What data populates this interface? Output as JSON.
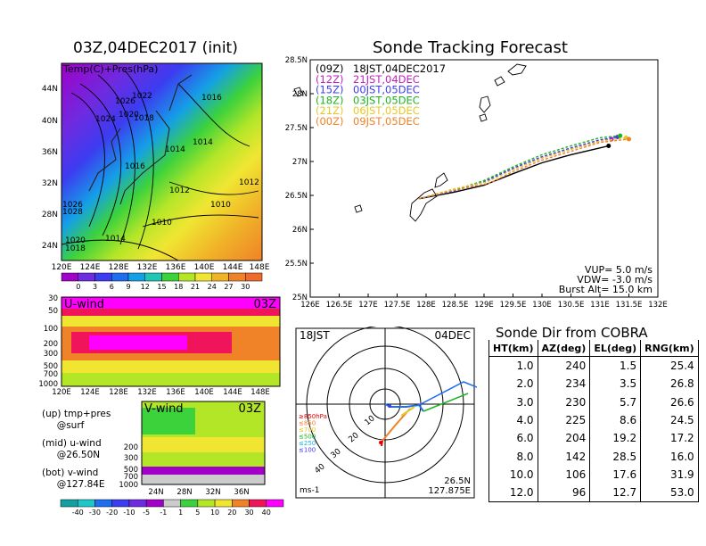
{
  "left_panel": {
    "title": "03Z,04DEC2017 (init)",
    "label": "Temp(C)+Pres(hPa)",
    "lat_labels": [
      "44N",
      "40N",
      "36N",
      "32N",
      "28N",
      "24N"
    ],
    "lon_labels": [
      "120E",
      "124E",
      "128E",
      "132E",
      "136E",
      "140E",
      "144E",
      "148E"
    ],
    "pressure_labels": [
      "1026",
      "1022",
      "1016",
      "1024",
      "1020",
      "1018",
      "1014",
      "1014",
      "1016",
      "1012",
      "1012",
      "1010",
      "1010",
      "1026",
      "1028",
      "1014",
      "1020",
      "1018"
    ],
    "colorbar_ticks": [
      "0",
      "3",
      "6",
      "9",
      "12",
      "15",
      "18",
      "21",
      "24",
      "27",
      "30"
    ],
    "colorbar_colors": [
      "#a000c8",
      "#6e2be0",
      "#3c3cf0",
      "#1e6ef0",
      "#14a0e6",
      "#1ec8b4",
      "#3cd23c",
      "#b4e628",
      "#f0e632",
      "#f0b428",
      "#f08228",
      "#ee6a2d"
    ]
  },
  "u_wind_panel": {
    "label": "U-wind",
    "time": "03Z",
    "y_labels": [
      "30",
      "50",
      "100",
      "200",
      "300",
      "500",
      "700",
      "1000"
    ],
    "x_labels": [
      "120E",
      "124E",
      "128E",
      "132E",
      "136E",
      "140E",
      "144E",
      "148E"
    ]
  },
  "v_wind_panel": {
    "label": "V-wind",
    "time": "03Z",
    "y_labels": [
      "200",
      "300",
      "500",
      "700",
      "1000"
    ],
    "x_labels": [
      "24N",
      "28N",
      "32N",
      "36N"
    ]
  },
  "notes": {
    "line1": "(up) tmp+pres",
    "line2": "     @surf",
    "line3": "(mid) u-wind",
    "line4": "     @26.50N",
    "line5": "(bot) v-wind",
    "line6": "     @127.84E"
  },
  "wind_colorbar": {
    "ticks": [
      "-40",
      "-30",
      "-20",
      "-10",
      "-5",
      "-1",
      "1",
      "5",
      "10",
      "20",
      "30",
      "40"
    ],
    "colors": [
      "#14a0a0",
      "#1ec8c8",
      "#1e6ef0",
      "#3c3cf0",
      "#6e2be0",
      "#a000c8",
      "#cccccc",
      "#3cd23c",
      "#b4e628",
      "#f0e632",
      "#f08228",
      "#f0145a",
      "#ff00ff"
    ]
  },
  "tracking": {
    "title": "Sonde Tracking Forecast",
    "y_labels": [
      "28.5N",
      "28N",
      "27.5N",
      "27N",
      "26.5N",
      "26N",
      "25.5N",
      "25N"
    ],
    "x_labels": [
      "126E",
      "126.5E",
      "127E",
      "127.5E",
      "128E",
      "128.5E",
      "129E",
      "129.5E",
      "130E",
      "130.5E",
      "131E",
      "131.5E",
      "132E"
    ],
    "legend": [
      {
        "run": "(09Z)",
        "time": "18JST,04DEC2017",
        "color": "#000000"
      },
      {
        "run": "(12Z)",
        "time": "21JST,04DEC",
        "color": "#c020c0"
      },
      {
        "run": "(15Z)",
        "time": "00JST,05DEC",
        "color": "#3c3cf0"
      },
      {
        "run": "(18Z)",
        "time": "03JST,05DEC",
        "color": "#1eb41e"
      },
      {
        "run": "(21Z)",
        "time": "06JST,05DEC",
        "color": "#e6c828"
      },
      {
        "run": "(00Z)",
        "time": "09JST,05DEC",
        "color": "#f08228"
      }
    ],
    "params": {
      "vup": "VUP= 5.0 m/s",
      "vdw": "VDW= -3.0 m/s",
      "burst": "Burst Alt= 15.0 km"
    }
  },
  "chart_data": [
    {
      "type": "line",
      "title": "Sonde Tracking Forecast",
      "xlim": [
        126,
        132
      ],
      "ylim": [
        25,
        28.5
      ],
      "series": [
        {
          "name": "(09Z) 18JST,04DEC2017",
          "x": [
            127.87,
            128.5,
            129.0,
            129.5,
            130.0,
            130.5,
            131.0,
            131.15
          ],
          "y": [
            26.45,
            26.55,
            26.65,
            26.82,
            26.98,
            27.1,
            27.2,
            27.23
          ]
        },
        {
          "name": "(12Z) 21JST,04DEC",
          "x": [
            127.87,
            128.5,
            129.0,
            129.5,
            130.0,
            130.5,
            131.0,
            131.2
          ],
          "y": [
            26.45,
            26.57,
            26.7,
            26.88,
            27.05,
            27.18,
            27.3,
            27.33
          ]
        },
        {
          "name": "(15Z) 00JST,05DEC",
          "x": [
            127.87,
            128.5,
            129.0,
            129.5,
            130.0,
            130.5,
            131.0,
            131.3
          ],
          "y": [
            26.45,
            26.57,
            26.7,
            26.9,
            27.07,
            27.2,
            27.32,
            27.36
          ]
        },
        {
          "name": "(18Z) 03JST,05DEC",
          "x": [
            127.87,
            128.5,
            129.0,
            129.5,
            130.0,
            130.5,
            131.0,
            131.35
          ],
          "y": [
            26.45,
            26.58,
            26.72,
            26.92,
            27.1,
            27.23,
            27.35,
            27.38
          ]
        },
        {
          "name": "(21Z) 06JST,05DEC",
          "x": [
            127.87,
            128.5,
            129.05,
            129.5,
            130.0,
            130.5,
            131.0,
            131.45
          ],
          "y": [
            26.45,
            26.6,
            26.7,
            26.88,
            27.05,
            27.18,
            27.3,
            27.35
          ]
        },
        {
          "name": "(00Z) 09JST,05DEC",
          "x": [
            127.87,
            128.5,
            129.1,
            129.5,
            130.0,
            130.5,
            131.0,
            131.5
          ],
          "y": [
            26.45,
            26.58,
            26.68,
            26.85,
            27.02,
            27.15,
            27.28,
            27.33
          ]
        }
      ]
    },
    {
      "type": "table",
      "title": "Sonde Dir from COBRA",
      "columns": [
        "HT(km)",
        "AZ(deg)",
        "EL(deg)",
        "RNG(km)"
      ],
      "rows": [
        [
          "1.0",
          "240",
          "1.5",
          "25.4"
        ],
        [
          "2.0",
          "234",
          "3.5",
          "26.8"
        ],
        [
          "3.0",
          "230",
          "5.7",
          "26.6"
        ],
        [
          "4.0",
          "225",
          "8.6",
          "24.5"
        ],
        [
          "6.0",
          "204",
          "19.2",
          "17.2"
        ],
        [
          "8.0",
          "142",
          "28.5",
          "16.0"
        ],
        [
          "10.0",
          "106",
          "17.6",
          "31.9"
        ],
        [
          "12.0",
          "96",
          "12.7",
          "53.0"
        ]
      ]
    }
  ],
  "polar": {
    "time": "18JST",
    "date": "04DEC",
    "ring_labels": [
      "10",
      "20",
      "30",
      "40"
    ],
    "levels": [
      {
        "label": "≥850hPa",
        "color": "#e60000"
      },
      {
        "label": "≤850",
        "color": "#f08228"
      },
      {
        "label": "≤700",
        "color": "#e6c828"
      },
      {
        "label": "≤500",
        "color": "#1eb41e"
      },
      {
        "label": "≤250",
        "color": "#14b4e6"
      },
      {
        "label": "≤100",
        "color": "#3c3cf0"
      }
    ],
    "unit": "ms-1",
    "lat": "26.5N",
    "lon": "127.875E"
  }
}
